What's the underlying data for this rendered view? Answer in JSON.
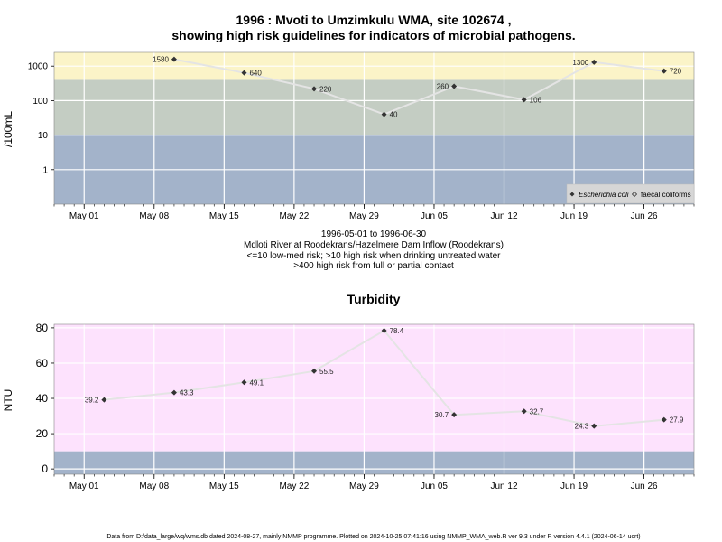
{
  "title_line1": "1996 : Mvoti to Umzimkulu WMA, site 102674 ,",
  "title_line2": "showing high risk guidelines for indicators of microbial pathogens.",
  "info_lines": [
    "1996-05-01 to 1996-06-30",
    "Mdloti River at Roodekrans/Hazelmere Dam Inflow (Roodekrans)",
    "<=10 low-med risk; >10 high risk when drinking untreated water",
    ">400 high risk from full or partial contact"
  ],
  "footer": "Data from D:/data_large/wq/wms.db dated 2024-08-27, mainly NMMP programme. Plotted on 2024-10-25 07:41:16 using NMMP_WMA_web.R ver 9.3 under R version 4.4.1 (2024-06-14 ucrt)",
  "x_tick_labels": [
    "May 01",
    "May 08",
    "May 15",
    "May 22",
    "May 29",
    "Jun 05",
    "Jun 12",
    "Jun 19",
    "Jun 26"
  ],
  "colors": {
    "band_high_contact": "#fbf4c8",
    "band_high_drink": "#c4cdc3",
    "band_low": "#a3b3ca",
    "band_turbidity": "#fde2fd",
    "grid": "#ffffff",
    "line": "#e4e4e4",
    "point": "#333333"
  },
  "chart_data": [
    {
      "type": "line",
      "title": "",
      "ylabel": "/100mL",
      "y_scale": "log",
      "y_ticks": [
        "1",
        "10",
        "100",
        "1000"
      ],
      "x_range": [
        "1996-04-28",
        "1996-07-01"
      ],
      "ylim": [
        0.1,
        2500
      ],
      "bands": [
        {
          "from": 0.1,
          "to": 10,
          "color": "#a3b3ca"
        },
        {
          "from": 10,
          "to": 400,
          "color": "#c4cdc3"
        },
        {
          "from": 400,
          "to": 2500,
          "color": "#fbf4c8"
        }
      ],
      "legend": {
        "position": "bottom-right",
        "entries": [
          "Escherichia coli",
          "faecal coliforms"
        ]
      },
      "series": [
        {
          "name": "Escherichia coli",
          "points": [
            {
              "x": "1996-05-10",
              "y": 1580,
              "label": "1580"
            },
            {
              "x": "1996-05-17",
              "y": 640,
              "label": "640"
            },
            {
              "x": "1996-05-24",
              "y": 220,
              "label": "220"
            },
            {
              "x": "1996-05-31",
              "y": 40,
              "label": "40"
            },
            {
              "x": "1996-06-07",
              "y": 260,
              "label": "260"
            },
            {
              "x": "1996-06-14",
              "y": 106,
              "label": "106"
            },
            {
              "x": "1996-06-21",
              "y": 1300,
              "label": "1300"
            },
            {
              "x": "1996-06-28",
              "y": 720,
              "label": "720"
            }
          ]
        }
      ]
    },
    {
      "type": "line",
      "title": "Turbidity",
      "ylabel": "NTU",
      "y_scale": "linear",
      "y_ticks": [
        "0",
        "20",
        "40",
        "60",
        "80"
      ],
      "x_range": [
        "1996-04-28",
        "1996-07-01"
      ],
      "ylim": [
        -3,
        82
      ],
      "bands": [
        {
          "from": -3,
          "to": 10,
          "color": "#a3b3ca"
        },
        {
          "from": 10,
          "to": 82,
          "color": "#fde2fd"
        }
      ],
      "series": [
        {
          "name": "",
          "points": [
            {
              "x": "1996-05-03",
              "y": 39.2,
              "label": "39.2"
            },
            {
              "x": "1996-05-10",
              "y": 43.3,
              "label": "43.3"
            },
            {
              "x": "1996-05-17",
              "y": 49.1,
              "label": "49.1"
            },
            {
              "x": "1996-05-24",
              "y": 55.5,
              "label": "55.5"
            },
            {
              "x": "1996-05-31",
              "y": 78.4,
              "label": "78.4"
            },
            {
              "x": "1996-06-07",
              "y": 30.7,
              "label": "30.7"
            },
            {
              "x": "1996-06-14",
              "y": 32.7,
              "label": "32.7"
            },
            {
              "x": "1996-06-21",
              "y": 24.3,
              "label": "24.3"
            },
            {
              "x": "1996-06-28",
              "y": 27.9,
              "label": "27.9"
            }
          ]
        }
      ]
    }
  ]
}
